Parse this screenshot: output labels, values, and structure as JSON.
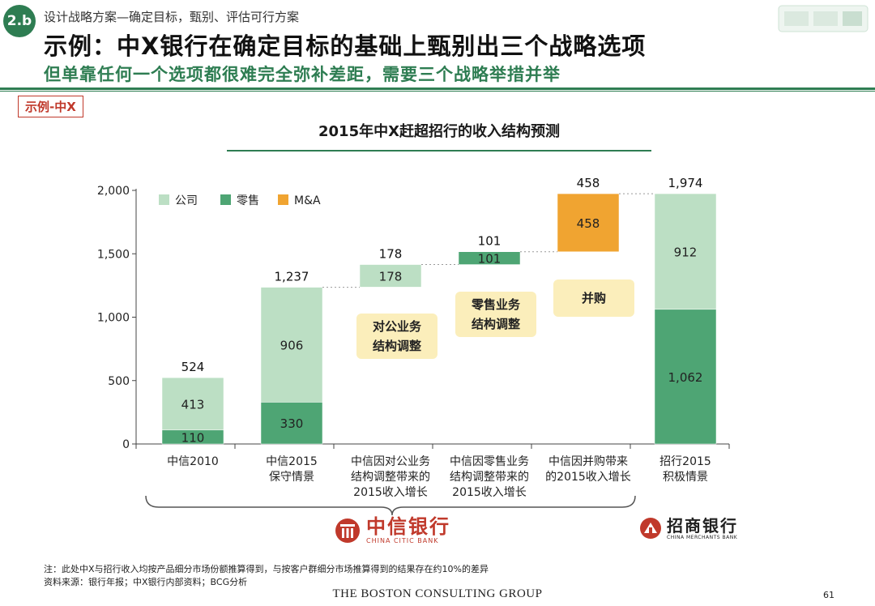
{
  "header": {
    "badge": "2.b",
    "breadcrumb": "设计战略方案—确定目标，甄别、评估可行方案",
    "title": "示例：中X银行在确定目标的基础上甄别出三个战略选项",
    "subtitle": "但单靠任何一个选项都很难完全弥补差距，需要三个战略举措并举",
    "tag": "示例-中X"
  },
  "chart_data": {
    "type": "bar",
    "subtype": "waterfall",
    "title": "2015年中X赶超招行的收入结构预测",
    "ylim": [
      0,
      2000
    ],
    "yticks": [
      0,
      500,
      1000,
      1500,
      2000
    ],
    "ytick_labels": [
      "0",
      "500",
      "1,000",
      "1,500",
      "2,000"
    ],
    "legend": {
      "position": "top-left",
      "items": [
        {
          "name": "公司",
          "color": "#bcdfc4"
        },
        {
          "name": "零售",
          "color": "#4ea574"
        },
        {
          "name": "M&A",
          "color": "#f0a431"
        }
      ]
    },
    "categories": [
      {
        "lines": [
          "中信2010"
        ]
      },
      {
        "lines": [
          "中信2015",
          "保守情景"
        ]
      },
      {
        "lines": [
          "中信因对公业务",
          "结构调整带来的",
          "2015收入增长"
        ]
      },
      {
        "lines": [
          "中信因零售业务",
          "结构调整带来的",
          "2015收入增长"
        ]
      },
      {
        "lines": [
          "中信因并购带来",
          "的2015收入增长"
        ]
      },
      {
        "lines": [
          "招行2015",
          "积极情景"
        ]
      }
    ],
    "bars": [
      {
        "base": 0,
        "total_label": "1,974",
        "segments": [],
        "placeholder": true
      },
      {
        "base": 0,
        "total_label": "524",
        "segments": [
          {
            "series": "零售",
            "value": 110,
            "label": "110"
          },
          {
            "series": "公司",
            "value": 413,
            "label": "413"
          }
        ]
      },
      {
        "base": 0,
        "total_label": "1,237",
        "segments": [
          {
            "series": "零售",
            "value": 330,
            "label": "330"
          },
          {
            "series": "公司",
            "value": 906,
            "label": "906"
          }
        ]
      },
      {
        "base": 1237,
        "total_label": "178",
        "segments": [
          {
            "series": "公司",
            "value": 178,
            "label": "178"
          }
        ]
      },
      {
        "base": 1415,
        "total_label": "101",
        "segments": [
          {
            "series": "零售",
            "value": 101,
            "label": "101"
          }
        ]
      },
      {
        "base": 1516,
        "total_label": "458",
        "segments": [
          {
            "series": "M&A",
            "value": 458,
            "label": "458"
          }
        ]
      },
      {
        "base": 0,
        "total_label": "1,974",
        "segments": [
          {
            "series": "零售",
            "value": 1062,
            "label": "1,062"
          },
          {
            "series": "公司",
            "value": 912,
            "label": "912"
          }
        ]
      }
    ],
    "colors": {
      "公司": "#bcdfc4",
      "零售": "#4ea574",
      "M&A": "#f0a431",
      "rule": "#2e7d52"
    }
  },
  "callouts": [
    {
      "lines": [
        "对公业务",
        "结构调整"
      ]
    },
    {
      "lines": [
        "零售业务",
        "结构调整"
      ]
    },
    {
      "lines": [
        "并购"
      ]
    }
  ],
  "logos": {
    "citic": {
      "name": "中信银行",
      "sub": "CHINA CITIC BANK"
    },
    "cmb": {
      "name": "招商银行",
      "sub": "CHINA MERCHANTS BANK"
    }
  },
  "notes": {
    "note": "注：此处中X与招行收入均按产品细分市场份额推算得到，与按客户群细分市场推算得到的结果存在约10%的差异",
    "source": "资料来源：银行年报；中X银行内部资料；BCG分析"
  },
  "footer": {
    "company": "THE BOSTON CONSULTING GROUP",
    "page": "61"
  }
}
